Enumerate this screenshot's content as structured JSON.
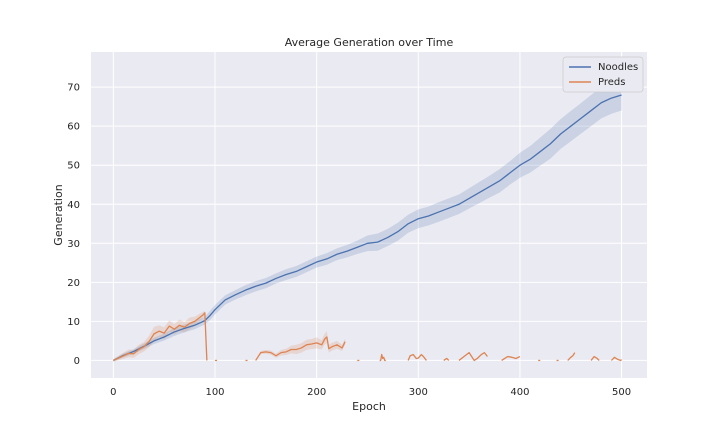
{
  "chart_data": {
    "type": "line",
    "title": "Average Generation over Time",
    "xlabel": "Epoch",
    "ylabel": "Generation",
    "xlim": [
      -22,
      525
    ],
    "ylim": [
      -4.5,
      79
    ],
    "xticks": [
      0,
      100,
      200,
      300,
      400,
      500
    ],
    "yticks": [
      0,
      10,
      20,
      30,
      40,
      50,
      60,
      70
    ],
    "grid": true,
    "legend_position": "top-right",
    "colors": {
      "background": "#eaeaf2",
      "grid": "#ffffff",
      "noodles": "#4c72b0",
      "preds": "#dd8452"
    },
    "series": [
      {
        "name": "Noodles",
        "color": "#4c72b0",
        "x": [
          0,
          10,
          20,
          30,
          40,
          50,
          60,
          70,
          80,
          90,
          95,
          100,
          110,
          120,
          130,
          140,
          150,
          160,
          170,
          180,
          190,
          200,
          210,
          220,
          230,
          240,
          250,
          260,
          270,
          280,
          290,
          300,
          310,
          320,
          330,
          340,
          350,
          360,
          370,
          380,
          390,
          400,
          410,
          420,
          430,
          440,
          450,
          460,
          470,
          480,
          490,
          500
        ],
        "values": [
          0,
          1.3,
          2.3,
          3.6,
          5.0,
          6.0,
          7.3,
          8.2,
          9.0,
          10.2,
          11.5,
          13.0,
          15.5,
          16.8,
          18.0,
          19.0,
          19.8,
          21.0,
          22.0,
          22.8,
          24.0,
          25.2,
          26.0,
          27.2,
          28.0,
          29.0,
          30.0,
          30.3,
          31.5,
          33.0,
          35.0,
          36.3,
          37.0,
          38.0,
          39.0,
          40.0,
          41.5,
          43.0,
          44.5,
          46.0,
          48.0,
          50.0,
          51.5,
          53.5,
          55.5,
          58.0,
          60.0,
          62.0,
          64.0,
          66.0,
          67.2,
          68.0
        ],
        "band": [
          0.3,
          0.5,
          0.6,
          0.7,
          0.8,
          0.9,
          1.0,
          1.0,
          1.0,
          1.0,
          1.2,
          1.2,
          1.2,
          1.2,
          1.3,
          1.3,
          1.3,
          1.3,
          1.4,
          1.4,
          1.4,
          1.4,
          1.5,
          1.5,
          1.6,
          1.7,
          2.0,
          2.2,
          2.2,
          2.3,
          2.3,
          2.4,
          2.4,
          2.5,
          2.5,
          2.5,
          2.6,
          2.7,
          2.8,
          3.0,
          3.0,
          3.2,
          3.4,
          3.6,
          3.8,
          3.8,
          3.9,
          3.9,
          4.0,
          4.0,
          4.0,
          4.0
        ]
      },
      {
        "name": "Preds",
        "color": "#dd8452",
        "segments": [
          {
            "x": [
              0,
              5,
              10,
              15,
              20,
              25,
              30,
              35,
              40,
              45,
              50,
              55,
              60,
              65,
              70,
              75,
              80,
              85,
              88,
              90,
              91,
              92
            ],
            "values": [
              0,
              0.6,
              1.2,
              1.8,
              1.7,
              2.8,
              3.5,
              4.8,
              6.8,
              7.5,
              7.0,
              8.8,
              8.0,
              9.0,
              8.5,
              9.5,
              10.0,
              11.0,
              11.6,
              12.2,
              6.0,
              0
            ],
            "band": [
              0.3,
              0.6,
              0.8,
              1.0,
              1.0,
              1.2,
              1.2,
              1.5,
              1.8,
              1.5,
              1.5,
              1.5,
              1.3,
              1.5,
              1.3,
              1.5,
              1.2,
              1.0,
              0.8,
              0.5,
              0.3,
              0
            ]
          },
          {
            "x": [
              100,
              102
            ],
            "values": [
              0,
              0
            ]
          },
          {
            "x": [
              130,
              132
            ],
            "values": [
              0,
              0
            ]
          },
          {
            "x": [
              140,
              145,
              150,
              155,
              160,
              165,
              170,
              175,
              180,
              185,
              190,
              195,
              200,
              205,
              208,
              210,
              212,
              215,
              220,
              225,
              228
            ],
            "values": [
              0,
              2.0,
              2.2,
              2.0,
              1.2,
              2.0,
              2.2,
              2.8,
              2.8,
              3.2,
              4.0,
              4.2,
              4.5,
              4.0,
              5.5,
              6.0,
              3.0,
              3.5,
              4.0,
              3.2,
              4.8
            ],
            "band": [
              0,
              0.4,
              0.5,
              0.5,
              0.5,
              0.7,
              0.8,
              1.0,
              1.2,
              1.2,
              1.3,
              1.3,
              1.4,
              1.2,
              1.4,
              1.5,
              1.0,
              1.0,
              1.0,
              0.8,
              0.8
            ]
          },
          {
            "x": [
              240,
              242
            ],
            "values": [
              0,
              0
            ]
          },
          {
            "x": [
              262,
              263,
              264,
              265,
              266,
              267,
              268
            ],
            "values": [
              0,
              0,
              1.5,
              0.5,
              0.8,
              0,
              0
            ]
          },
          {
            "x": [
              290,
              292,
              295,
              298,
              300,
              303,
              305,
              308
            ],
            "values": [
              0,
              1.2,
              1.5,
              0.5,
              0.6,
              1.5,
              1.0,
              0
            ]
          },
          {
            "x": [
              325,
              328,
              330
            ],
            "values": [
              0,
              0.5,
              0
            ]
          },
          {
            "x": [
              340,
              345,
              350,
              352,
              355,
              358,
              360,
              362,
              365,
              368
            ],
            "values": [
              0,
              1.0,
              2.0,
              1.2,
              0,
              0.5,
              1.0,
              1.5,
              2.0,
              1.0
            ]
          },
          {
            "x": [
              382,
              385,
              388,
              392,
              396,
              400
            ],
            "values": [
              0,
              0.5,
              1.0,
              0.8,
              0.5,
              1.0
            ]
          },
          {
            "x": [
              418,
              420
            ],
            "values": [
              0,
              0
            ]
          },
          {
            "x": [
              436,
              438
            ],
            "values": [
              0,
              0
            ]
          },
          {
            "x": [
              447,
              450,
              452,
              454
            ],
            "values": [
              0,
              0.8,
              1.2,
              2.0
            ]
          },
          {
            "x": [
              470,
              473,
              476,
              478
            ],
            "values": [
              0,
              1.0,
              0.5,
              0
            ]
          },
          {
            "x": [
              490,
              493,
              496,
              499,
              500
            ],
            "values": [
              0,
              0.8,
              0.3,
              0,
              0.2
            ]
          }
        ]
      }
    ]
  }
}
